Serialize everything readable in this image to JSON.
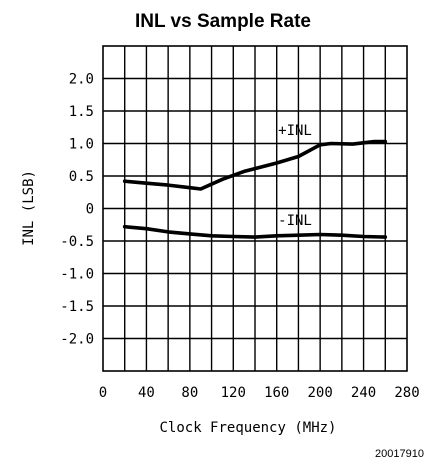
{
  "chart_data": {
    "type": "line",
    "title": "INL vs Sample Rate",
    "xlabel": "Clock Frequency (MHz)",
    "ylabel": "INL (LSB)",
    "xlim": [
      0,
      280
    ],
    "ylim": [
      -2.5,
      2.5
    ],
    "xticks": [
      0,
      40,
      80,
      120,
      160,
      200,
      240,
      280
    ],
    "yticks": [
      2.0,
      1.5,
      1.0,
      0.5,
      0,
      -0.5,
      -1.0,
      -1.5,
      -2.0
    ],
    "ytick_labels": [
      "2.0",
      "1.5",
      "1.0",
      "0.5",
      "0",
      "-0.5",
      "-1.0",
      "-1.5",
      "-2.0"
    ],
    "grid": true,
    "series": [
      {
        "name": "+INL",
        "x": [
          20,
          40,
          60,
          80,
          90,
          110,
          130,
          160,
          180,
          200,
          210,
          230,
          250,
          260
        ],
        "y": [
          0.42,
          0.39,
          0.36,
          0.32,
          0.3,
          0.45,
          0.57,
          0.7,
          0.8,
          0.98,
          1.0,
          0.99,
          1.03,
          1.03
        ]
      },
      {
        "name": "-INL",
        "x": [
          20,
          40,
          60,
          80,
          100,
          120,
          140,
          160,
          180,
          200,
          220,
          240,
          260
        ],
        "y": [
          -0.28,
          -0.31,
          -0.36,
          -0.39,
          -0.42,
          -0.43,
          -0.44,
          -0.42,
          -0.41,
          -0.4,
          -0.41,
          -0.43,
          -0.44
        ]
      }
    ]
  },
  "figure_code": "20017910"
}
